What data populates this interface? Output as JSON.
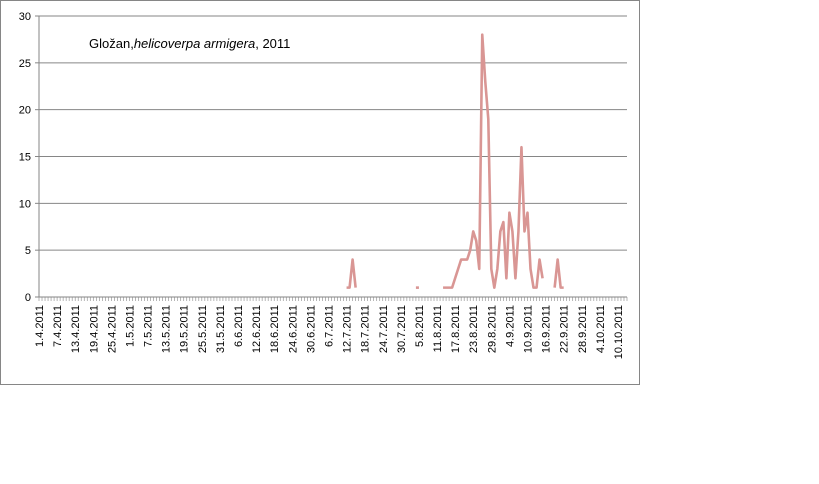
{
  "chart_data": {
    "type": "line",
    "title_parts": [
      {
        "text": "Gložan,",
        "italic": false
      },
      {
        "text": "helicoverpa armigera",
        "italic": true
      },
      {
        "text": ", 2011",
        "italic": false
      }
    ],
    "x_start_date": "2011-04-01",
    "x_end_date": "2011-10-13",
    "x_tick_labels": [
      "1.4.2011",
      "7.4.2011",
      "13.4.2011",
      "19.4.2011",
      "25.4.2011",
      "1.5.2011",
      "7.5.2011",
      "13.5.2011",
      "19.5.2011",
      "25.5.2011",
      "31.5.2011",
      "6.6.2011",
      "12.6.2011",
      "18.6.2011",
      "24.6.2011",
      "30.6.2011",
      "6.7.2011",
      "12.7.2011",
      "18.7.2011",
      "24.7.2011",
      "30.7.2011",
      "5.8.2011",
      "11.8.2011",
      "17.8.2011",
      "23.8.2011",
      "29.8.2011",
      "4.9.2011",
      "10.9.2011",
      "16.9.2011",
      "22.9.2011",
      "28.9.2011",
      "4.10.2011",
      "10.10.2011"
    ],
    "y_ticks": [
      0,
      5,
      10,
      15,
      20,
      25,
      30
    ],
    "ylim": [
      0,
      30
    ],
    "grid": "horizontal",
    "line_color": "#D99694",
    "series": [
      {
        "segments": [
          [
            [
              "2011-07-12",
              1
            ],
            [
              "2011-07-13",
              1
            ],
            [
              "2011-07-14",
              4
            ],
            [
              "2011-07-15",
              1
            ]
          ],
          [
            [
              "2011-08-04",
              1
            ],
            [
              "2011-08-05",
              1
            ]
          ],
          [
            [
              "2011-08-13",
              1
            ],
            [
              "2011-08-14",
              1
            ],
            [
              "2011-08-15",
              1
            ],
            [
              "2011-08-16",
              1
            ],
            [
              "2011-08-17",
              2
            ],
            [
              "2011-08-18",
              3
            ],
            [
              "2011-08-19",
              4
            ],
            [
              "2011-08-20",
              4
            ],
            [
              "2011-08-21",
              4
            ],
            [
              "2011-08-22",
              5
            ],
            [
              "2011-08-23",
              7
            ],
            [
              "2011-08-24",
              6
            ],
            [
              "2011-08-25",
              3
            ],
            [
              "2011-08-26",
              28
            ],
            [
              "2011-08-27",
              23
            ],
            [
              "2011-08-28",
              19
            ],
            [
              "2011-08-29",
              3
            ],
            [
              "2011-08-30",
              1
            ],
            [
              "2011-08-31",
              3
            ],
            [
              "2011-09-01",
              7
            ],
            [
              "2011-09-02",
              8
            ],
            [
              "2011-09-03",
              2
            ],
            [
              "2011-09-04",
              9
            ],
            [
              "2011-09-05",
              7
            ],
            [
              "2011-09-06",
              2
            ],
            [
              "2011-09-07",
              7
            ],
            [
              "2011-09-08",
              16
            ],
            [
              "2011-09-09",
              7
            ],
            [
              "2011-09-10",
              9
            ],
            [
              "2011-09-11",
              3
            ],
            [
              "2011-09-12",
              1
            ],
            [
              "2011-09-13",
              1
            ],
            [
              "2011-09-14",
              4
            ],
            [
              "2011-09-15",
              2
            ]
          ],
          [
            [
              "2011-09-19",
              1
            ],
            [
              "2011-09-20",
              4
            ],
            [
              "2011-09-21",
              1
            ],
            [
              "2011-09-22",
              1
            ]
          ]
        ]
      }
    ]
  }
}
